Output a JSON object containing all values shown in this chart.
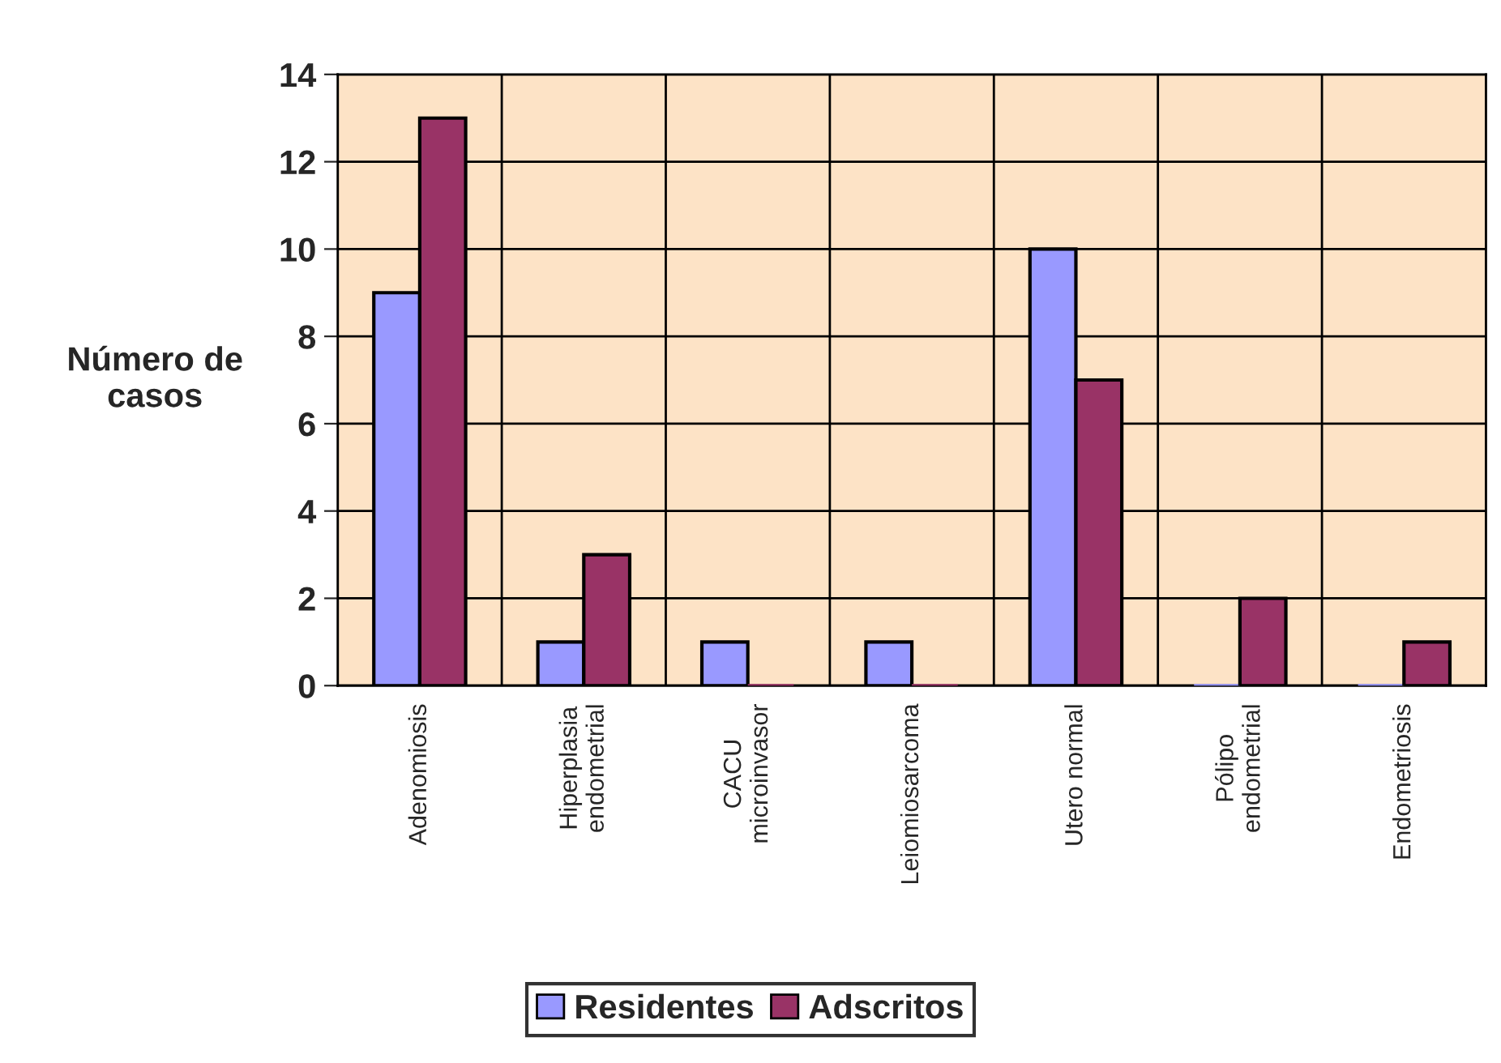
{
  "chart_data": {
    "type": "bar",
    "ylabel": "Número de\ncasos",
    "categories": [
      "Adenomiosis",
      "Hiperplasia\nendometrial",
      "CACU\nmicroinvasor",
      "Leiomiosarcoma",
      "Utero normal",
      "Pólipo\nendometrial",
      "Endometriosis"
    ],
    "series": [
      {
        "name": "Residentes",
        "color": "#9999ff",
        "values": [
          9,
          1,
          1,
          1,
          10,
          0,
          0
        ]
      },
      {
        "name": "Adscritos",
        "color": "#993366",
        "values": [
          13,
          3,
          0,
          0,
          7,
          2,
          1
        ]
      }
    ],
    "ylim": [
      0,
      14
    ],
    "yticks": [
      0,
      2,
      4,
      6,
      8,
      10,
      12,
      14
    ],
    "grid": true,
    "legend": "bottom"
  }
}
